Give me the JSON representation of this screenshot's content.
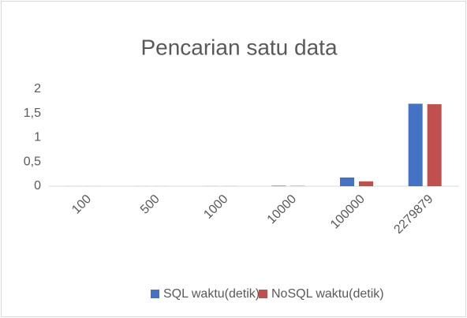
{
  "chart_data": {
    "type": "bar",
    "title": "Pencarian satu data",
    "categories": [
      "100",
      "500",
      "1000",
      "10000",
      "100000",
      "2279879"
    ],
    "series": [
      {
        "name": "SQL waktu(detik)",
        "color": "#4472c4",
        "values": [
          0.001,
          0.001,
          0.002,
          0.01,
          0.18,
          1.7
        ]
      },
      {
        "name": "NoSQL waktu(detik)",
        "color": "#c0504d",
        "values": [
          0.001,
          0.001,
          0.002,
          0.006,
          0.1,
          1.69
        ]
      }
    ],
    "ylim": [
      0,
      2
    ],
    "yticks": [
      0,
      {
        "value": 0.5,
        "label": "0,5"
      },
      1,
      {
        "value": 1.5,
        "label": "1,5"
      },
      2
    ],
    "grid": false,
    "legend": "bottom"
  }
}
